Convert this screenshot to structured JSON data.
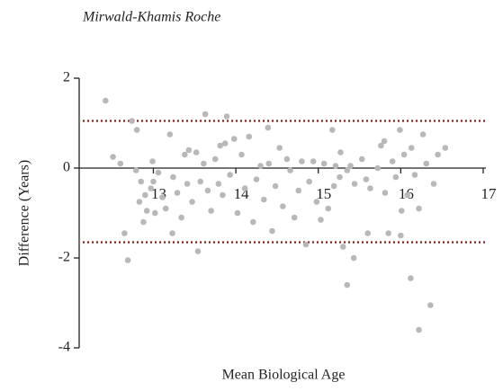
{
  "chart_data": {
    "type": "scatter",
    "title": "Mirwald-Khamis Roche",
    "x_label": "Mean Biological Age",
    "y_label": "Difference (Years)",
    "xlim": [
      12.1,
      17
    ],
    "ylim": [
      -4,
      2
    ],
    "xticks": [
      13,
      14,
      15,
      16,
      17
    ],
    "yticks": [
      -4,
      -2,
      0,
      2
    ],
    "color": "#b8b8b8",
    "reference_lines": [
      1.05,
      -1.65
    ],
    "reference_color": "#8b1a1a",
    "x": [
      12.42,
      12.51,
      12.6,
      12.65,
      12.69,
      12.74,
      12.79,
      12.8,
      12.83,
      12.85,
      12.88,
      12.9,
      12.92,
      12.97,
      12.99,
      13.02,
      13.06,
      13.11,
      13.15,
      13.2,
      13.23,
      13.24,
      13.29,
      13.34,
      13.38,
      13.41,
      13.43,
      13.47,
      13.52,
      13.54,
      13.57,
      13.61,
      13.63,
      13.66,
      13.7,
      13.75,
      13.79,
      13.81,
      13.84,
      13.87,
      13.89,
      13.93,
      13.98,
      14.02,
      14.07,
      14.11,
      14.16,
      14.21,
      14.25,
      14.3,
      14.34,
      14.39,
      14.44,
      14.48,
      14.53,
      14.57,
      14.62,
      14.66,
      14.71,
      14.76,
      14.8,
      14.85,
      14.89,
      14.94,
      14.98,
      15.03,
      15.07,
      15.12,
      15.17,
      15.19,
      15.21,
      15.26,
      15.27,
      15.3,
      15.35,
      15.39,
      15.44,
      15.35,
      15.53,
      15.58,
      15.63,
      15.43,
      15.72,
      15.76,
      15.81,
      15.85,
      15.9,
      15.94,
      15.99,
      16.01,
      16.04,
      16.08,
      16.13,
      16.17,
      16.22,
      16.27,
      16.12,
      16.31,
      16.22,
      16.4,
      16.45,
      16.36,
      16.54,
      15.6,
      16.0,
      13.0,
      14.4,
      15.8
    ],
    "values": [
      1.5,
      0.25,
      0.1,
      -1.45,
      -2.05,
      1.05,
      -0.05,
      0.85,
      -0.75,
      -0.3,
      -1.2,
      -0.6,
      -0.95,
      -0.45,
      0.15,
      -1.0,
      -0.1,
      -0.65,
      -0.9,
      0.75,
      -1.45,
      -0.2,
      -0.55,
      -1.1,
      0.3,
      -0.35,
      0.4,
      -0.75,
      0.35,
      -1.85,
      -0.3,
      0.1,
      1.2,
      -0.5,
      -0.95,
      0.2,
      -0.35,
      0.5,
      -0.6,
      0.55,
      1.15,
      -0.15,
      0.65,
      -1.0,
      0.3,
      -0.45,
      0.7,
      -1.2,
      -0.25,
      0.05,
      -0.7,
      0.9,
      -1.4,
      -0.4,
      0.45,
      -0.85,
      0.2,
      -0.05,
      -1.1,
      -0.5,
      0.15,
      -1.7,
      -0.3,
      0.15,
      -0.75,
      -1.15,
      0.1,
      -0.9,
      0.85,
      -0.4,
      0.05,
      -0.2,
      0.35,
      -1.75,
      -0.05,
      0.05,
      -0.35,
      -2.6,
      0.2,
      -0.25,
      -0.45,
      -2.0,
      0.0,
      0.5,
      -0.55,
      -1.45,
      0.15,
      -0.2,
      0.85,
      -0.95,
      0.3,
      -0.6,
      0.45,
      -0.15,
      -0.9,
      0.75,
      -2.45,
      0.1,
      -3.6,
      -0.35,
      0.3,
      -3.05,
      0.45,
      -1.45,
      -1.5,
      -0.3,
      0.1,
      0.6
    ]
  }
}
